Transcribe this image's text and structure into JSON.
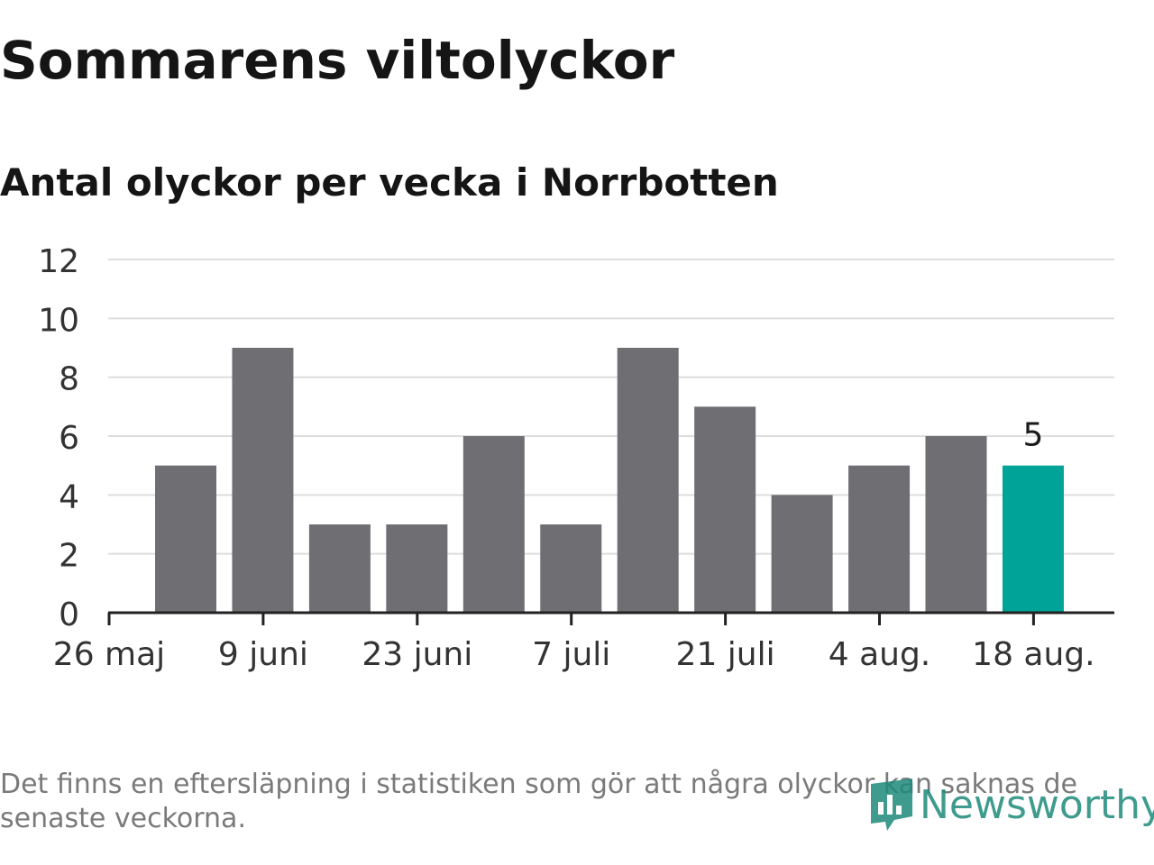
{
  "title": "Sommarens viltolyckor",
  "chart_data": {
    "type": "bar",
    "title": "Sommarens viltolyckor",
    "subtitle": "Antal olyckor per vecka i Norrbotten",
    "xlabel": "",
    "ylabel": "",
    "ylim": [
      0,
      12
    ],
    "yticks": [
      0,
      2,
      4,
      6,
      8,
      10,
      12
    ],
    "grid": true,
    "legend": "none",
    "xtick_labels": [
      "26 maj",
      "9 juni",
      "23 juni",
      "7 juli",
      "21 juli",
      "4 aug.",
      "18 aug."
    ],
    "values": [
      5,
      9,
      3,
      3,
      6,
      3,
      9,
      7,
      4,
      5,
      6,
      5
    ],
    "highlight_index": 11,
    "highlight_label": "5",
    "colors": {
      "bar": "#6f6e73",
      "highlight": "#00a398",
      "grid": "#dddddd",
      "axis": "#222222"
    }
  },
  "footnote": "Det finns en eftersläpning i statistiken som gör att några olyckor kan saknas de senaste veckorna.",
  "logo": {
    "text": "Newsworthy",
    "icon": "newsworthy-logo-icon",
    "color": "#1e8a7a"
  }
}
